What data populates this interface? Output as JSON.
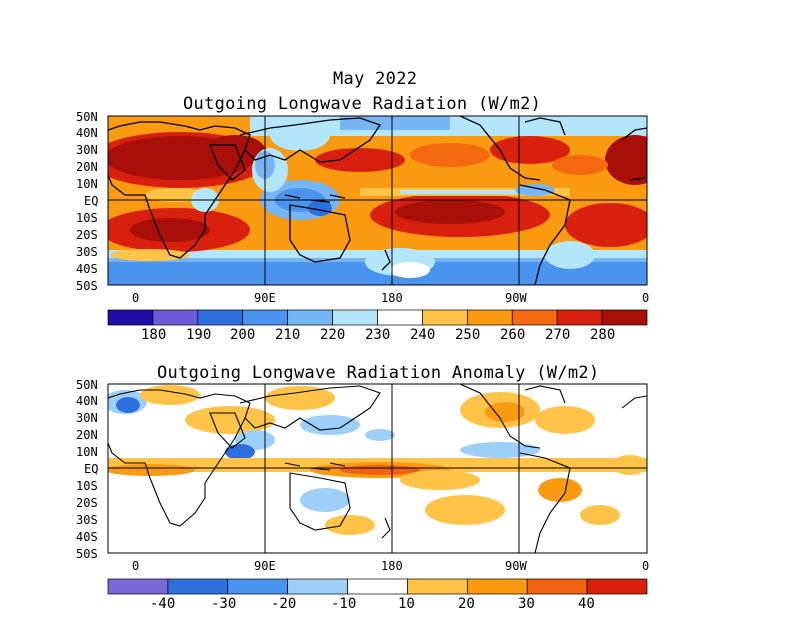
{
  "header": {
    "month": "May 2022"
  },
  "top_map": {
    "title": "Outgoing Longwave Radiation (W/m2)",
    "lat_labels": [
      "50N",
      "40N",
      "30N",
      "20N",
      "10N",
      "EQ",
      "10S",
      "20S",
      "30S",
      "40S",
      "50S"
    ],
    "lon_labels": [
      "0",
      "90E",
      "180",
      "90W",
      "0"
    ],
    "colorbar": {
      "labels": [
        "180",
        "190",
        "200",
        "210",
        "220",
        "230",
        "240",
        "250",
        "260",
        "270",
        "280"
      ],
      "colors": [
        "#1f0fa8",
        "#6a5bd6",
        "#2e6fe0",
        "#4a93ee",
        "#77b6f4",
        "#b4e6fb",
        "#ffffff",
        "#ffc447",
        "#f99a11",
        "#f56a0f",
        "#d9200f",
        "#a80f08"
      ]
    }
  },
  "bottom_map": {
    "title": "Outgoing Longwave Radiation Anomaly (W/m2)",
    "lat_labels": [
      "50N",
      "40N",
      "30N",
      "20N",
      "10N",
      "EQ",
      "10S",
      "20S",
      "30S",
      "40S",
      "50S"
    ],
    "lon_labels": [
      "0",
      "90E",
      "180",
      "90W",
      "0"
    ],
    "colorbar": {
      "labels": [
        "-40",
        "-30",
        "-20",
        "-10",
        "10",
        "20",
        "30",
        "40"
      ],
      "colors": [
        "#7a6ad8",
        "#2e6fe0",
        "#4a93ee",
        "#9cd0f8",
        "#ffffff",
        "#ffc447",
        "#f99a11",
        "#f0620e",
        "#d9200f"
      ]
    }
  }
}
